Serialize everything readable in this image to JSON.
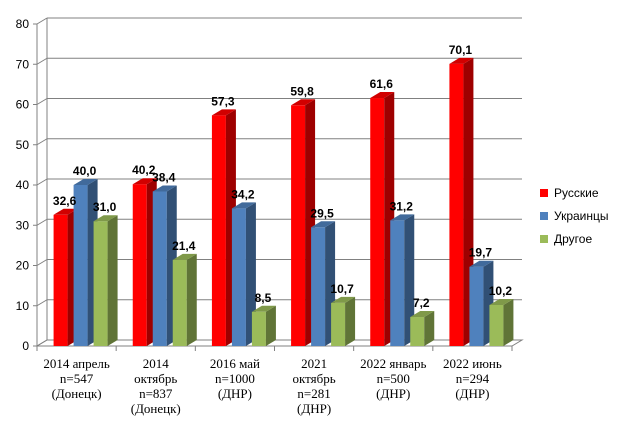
{
  "chart_data": {
    "type": "bar",
    "categories": [
      [
        "2014 апрель",
        "n=547",
        "(Донецк)"
      ],
      [
        "2014",
        "октябрь",
        "n=837",
        "(Донецк)"
      ],
      [
        "2016 май",
        "n=1000",
        "(ДНР)"
      ],
      [
        "2021",
        "октябрь",
        "n=281",
        "(ДНР)"
      ],
      [
        "2022 январь",
        "n=500",
        "(ДНР)"
      ],
      [
        "2022 июнь",
        "n=294",
        "(ДНР)"
      ]
    ],
    "series": [
      {
        "name": "Русские",
        "color": "#ff0000",
        "values": [
          32.6,
          40.2,
          57.3,
          59.8,
          61.6,
          70.1
        ],
        "labels": [
          "32,6",
          "40,2",
          "57,3",
          "59,8",
          "61,6",
          "70,1"
        ]
      },
      {
        "name": "Украинцы",
        "color": "#4f81bd",
        "values": [
          40.0,
          38.4,
          34.2,
          29.5,
          31.2,
          19.7
        ],
        "labels": [
          "40,0",
          "38,4",
          "34,2",
          "29,5",
          "31,2",
          "19,7"
        ]
      },
      {
        "name": "Другое",
        "color": "#9bbb59",
        "values": [
          31.0,
          21.4,
          8.5,
          10.7,
          7.2,
          10.2
        ],
        "labels": [
          "31,0",
          "21,4",
          "8,5",
          "10,7",
          "7,2",
          "10,2"
        ]
      }
    ],
    "ylim": [
      0,
      80
    ],
    "yticks": [
      "0",
      "10",
      "20",
      "30",
      "40",
      "50",
      "60",
      "70",
      "80"
    ],
    "grid": true,
    "legend": "right"
  }
}
